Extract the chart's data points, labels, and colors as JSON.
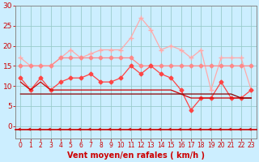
{
  "x": [
    0,
    1,
    2,
    3,
    4,
    5,
    6,
    7,
    8,
    9,
    10,
    11,
    12,
    13,
    14,
    15,
    16,
    17,
    18,
    19,
    20,
    21,
    22,
    23
  ],
  "series": [
    {
      "color": "#ffaaaa",
      "linewidth": 0.9,
      "marker": "+",
      "markersize": 4,
      "values": [
        17,
        15,
        15,
        15,
        17,
        19,
        17,
        18,
        19,
        19,
        19,
        22,
        27,
        24,
        19,
        20,
        19,
        17,
        19,
        9,
        17,
        17,
        17,
        9
      ]
    },
    {
      "color": "#ff8888",
      "linewidth": 0.9,
      "marker": "D",
      "markersize": 2.5,
      "values": [
        15,
        15,
        15,
        15,
        17,
        17,
        17,
        17,
        17,
        17,
        17,
        17,
        15,
        15,
        15,
        15,
        15,
        15,
        15,
        15,
        15,
        15,
        15,
        15
      ]
    },
    {
      "color": "#ff4444",
      "linewidth": 0.9,
      "marker": "D",
      "markersize": 2.5,
      "values": [
        12,
        9,
        12,
        9,
        11,
        12,
        12,
        13,
        11,
        11,
        12,
        15,
        13,
        15,
        13,
        12,
        9,
        4,
        7,
        7,
        11,
        7,
        7,
        9
      ]
    },
    {
      "color": "#cc0000",
      "linewidth": 0.9,
      "marker": null,
      "markersize": 0,
      "values": [
        11,
        9,
        11,
        9,
        9,
        9,
        9,
        9,
        9,
        9,
        9,
        9,
        9,
        9,
        9,
        9,
        8,
        7,
        7,
        7,
        7,
        7,
        7,
        7
      ]
    },
    {
      "color": "#880000",
      "linewidth": 0.9,
      "marker": null,
      "markersize": 0,
      "values": [
        8,
        8,
        8,
        8,
        8,
        8,
        8,
        8,
        8,
        8,
        8,
        8,
        8,
        8,
        8,
        8,
        8,
        8,
        8,
        8,
        8,
        8,
        7,
        7
      ]
    }
  ],
  "xlabel": "Vent moyen/en rafales ( km/h )",
  "xlim": [
    -0.5,
    23.5
  ],
  "ylim": [
    0,
    30
  ],
  "yticks": [
    0,
    5,
    10,
    15,
    20,
    25,
    30
  ],
  "xticks": [
    0,
    1,
    2,
    3,
    4,
    5,
    6,
    7,
    8,
    9,
    10,
    11,
    12,
    13,
    14,
    15,
    16,
    17,
    18,
    19,
    20,
    21,
    22,
    23
  ],
  "bg_color": "#cceeff",
  "grid_color": "#99cccc",
  "tick_color": "#cc0000",
  "label_color": "#cc0000",
  "arrow_color": "#cc0000",
  "redline_color": "#cc0000"
}
